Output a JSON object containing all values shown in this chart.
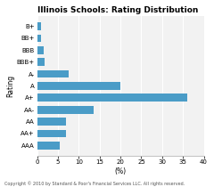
{
  "title": "Illinois Schools: Rating Distribution",
  "categories": [
    "B+",
    "BB+",
    "BBB",
    "BBB+",
    "A-",
    "A",
    "A+",
    "AA-",
    "AA",
    "AA+",
    "AAA"
  ],
  "values": [
    1.0,
    1.0,
    1.5,
    1.8,
    7.5,
    20.0,
    36.0,
    13.5,
    7.0,
    7.0,
    5.5
  ],
  "bar_color": "#4a9cc7",
  "xlabel": "(%)",
  "ylabel": "Rating",
  "xlim": [
    0,
    40
  ],
  "xticks": [
    0,
    5,
    10,
    15,
    20,
    25,
    30,
    35,
    40
  ],
  "title_fontsize": 6.5,
  "axis_fontsize": 5.5,
  "tick_fontsize": 5.0,
  "ylabel_fontsize": 5.5,
  "footer": "Copyright © 2010 by Standard & Poor's Financial Services LLC. All rights reserved.",
  "footer_fontsize": 3.5,
  "bg_color": "#f2f2f2",
  "grid_color": "white"
}
